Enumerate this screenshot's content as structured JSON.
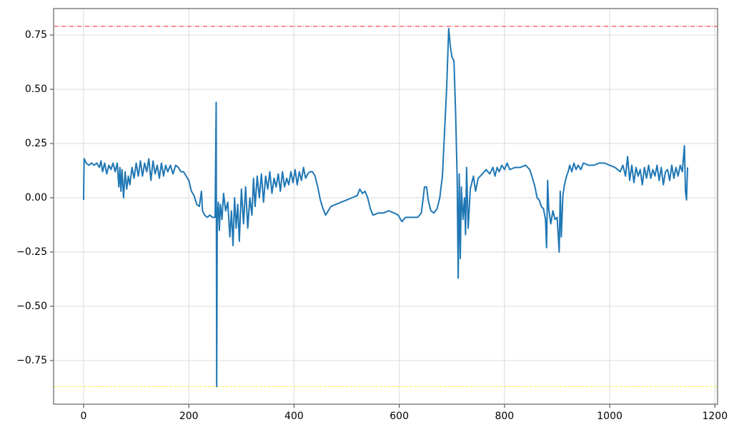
{
  "chart_data": {
    "type": "line",
    "color": "#1f77b4",
    "x": [
      0,
      1,
      5,
      10,
      15,
      20,
      25,
      30,
      33,
      36,
      40,
      44,
      48,
      52,
      56,
      60,
      64,
      67,
      69,
      71,
      73,
      76,
      79,
      82,
      85,
      88,
      92,
      96,
      100,
      104,
      108,
      112,
      116,
      120,
      124,
      128,
      132,
      136,
      140,
      144,
      148,
      152,
      156,
      160,
      165,
      170,
      175,
      180,
      185,
      190,
      195,
      200,
      205,
      210,
      215,
      220,
      224,
      226,
      230,
      235,
      240,
      245,
      250,
      252,
      253,
      254,
      256,
      258,
      260,
      263,
      266,
      270,
      274,
      278,
      281,
      284,
      287,
      290,
      293,
      296,
      300,
      304,
      308,
      312,
      316,
      320,
      323,
      326,
      330,
      334,
      338,
      342,
      346,
      350,
      354,
      358,
      362,
      366,
      370,
      374,
      378,
      382,
      386,
      390,
      394,
      398,
      402,
      406,
      410,
      414,
      418,
      422,
      426,
      430,
      435,
      440,
      445,
      450,
      455,
      460,
      465,
      470,
      480,
      490,
      500,
      510,
      520,
      525,
      530,
      535,
      540,
      545,
      550,
      560,
      570,
      580,
      590,
      598,
      605,
      612,
      620,
      635,
      642,
      648,
      652,
      655,
      660,
      666,
      672,
      677,
      682,
      686,
      690,
      694,
      697,
      700,
      704,
      707,
      710,
      712,
      714,
      716,
      718,
      721,
      724,
      726,
      728,
      731,
      735,
      738,
      741,
      745,
      750,
      758,
      765,
      772,
      778,
      782,
      786,
      790,
      795,
      800,
      805,
      810,
      820,
      830,
      840,
      848,
      852,
      858,
      862,
      866,
      870,
      874,
      878,
      880,
      882,
      884,
      888,
      892,
      896,
      900,
      904,
      906,
      908,
      911,
      914,
      918,
      921,
      924,
      928,
      932,
      936,
      940,
      945,
      950,
      960,
      970,
      980,
      990,
      1000,
      1010,
      1020,
      1025,
      1030,
      1034,
      1038,
      1042,
      1046,
      1050,
      1054,
      1058,
      1062,
      1066,
      1070,
      1074,
      1078,
      1082,
      1086,
      1090,
      1094,
      1098,
      1102,
      1106,
      1110,
      1114,
      1118,
      1122,
      1126,
      1130,
      1134,
      1138,
      1142,
      1144,
      1146,
      1148
    ],
    "values": [
      -0.01,
      0.18,
      0.16,
      0.15,
      0.16,
      0.15,
      0.16,
      0.14,
      0.17,
      0.12,
      0.16,
      0.11,
      0.15,
      0.13,
      0.16,
      0.12,
      0.16,
      0.05,
      0.14,
      0.03,
      0.13,
      0.0,
      0.12,
      0.04,
      0.1,
      0.06,
      0.14,
      0.09,
      0.16,
      0.1,
      0.17,
      0.1,
      0.16,
      0.12,
      0.18,
      0.08,
      0.17,
      0.11,
      0.15,
      0.09,
      0.16,
      0.1,
      0.15,
      0.12,
      0.15,
      0.11,
      0.15,
      0.14,
      0.12,
      0.12,
      0.1,
      0.08,
      0.03,
      0.01,
      -0.03,
      -0.04,
      0.03,
      -0.06,
      -0.08,
      -0.09,
      -0.08,
      -0.09,
      -0.09,
      0.44,
      -0.87,
      -0.1,
      -0.02,
      -0.15,
      -0.03,
      -0.1,
      0.02,
      -0.06,
      -0.02,
      -0.18,
      -0.06,
      -0.22,
      0.0,
      -0.14,
      -0.03,
      -0.2,
      0.04,
      -0.12,
      0.05,
      -0.14,
      0.0,
      -0.08,
      0.09,
      -0.04,
      0.1,
      0.0,
      0.11,
      -0.02,
      0.1,
      0.04,
      0.12,
      0.02,
      0.09,
      0.05,
      0.11,
      0.03,
      0.12,
      0.05,
      0.09,
      0.06,
      0.12,
      0.07,
      0.13,
      0.06,
      0.12,
      0.08,
      0.14,
      0.09,
      0.11,
      0.12,
      0.12,
      0.1,
      0.05,
      -0.01,
      -0.05,
      -0.08,
      -0.06,
      -0.04,
      -0.03,
      -0.02,
      -0.01,
      0.0,
      0.01,
      0.04,
      0.02,
      0.03,
      0.0,
      -0.05,
      -0.08,
      -0.07,
      -0.07,
      -0.06,
      -0.07,
      -0.08,
      -0.11,
      -0.09,
      -0.09,
      -0.09,
      -0.07,
      0.05,
      0.05,
      -0.01,
      -0.06,
      -0.07,
      -0.05,
      0.0,
      0.1,
      0.3,
      0.5,
      0.78,
      0.7,
      0.65,
      0.63,
      0.4,
      0.1,
      -0.37,
      0.11,
      -0.28,
      0.05,
      -0.1,
      0.0,
      -0.17,
      0.14,
      -0.14,
      0.04,
      0.07,
      0.1,
      0.03,
      0.09,
      0.11,
      0.13,
      0.11,
      0.14,
      0.1,
      0.14,
      0.12,
      0.15,
      0.13,
      0.16,
      0.13,
      0.14,
      0.14,
      0.15,
      0.13,
      0.1,
      0.05,
      0.0,
      -0.01,
      -0.04,
      -0.05,
      -0.1,
      -0.23,
      0.08,
      -0.05,
      -0.12,
      -0.06,
      -0.1,
      -0.09,
      -0.25,
      0.03,
      -0.18,
      0.01,
      0.06,
      0.1,
      0.12,
      0.15,
      0.12,
      0.16,
      0.13,
      0.15,
      0.13,
      0.16,
      0.15,
      0.15,
      0.16,
      0.16,
      0.15,
      0.14,
      0.12,
      0.15,
      0.1,
      0.19,
      0.08,
      0.15,
      0.07,
      0.14,
      0.1,
      0.13,
      0.06,
      0.14,
      0.09,
      0.15,
      0.09,
      0.13,
      0.1,
      0.15,
      0.08,
      0.14,
      0.06,
      0.12,
      0.13,
      0.08,
      0.15,
      0.09,
      0.14,
      0.1,
      0.15,
      0.12,
      0.24,
      0.03,
      -0.01,
      0.14
    ],
    "hlines": [
      {
        "value": 0.79,
        "color": "#ff0000"
      },
      {
        "value": -0.87,
        "color": "#ffee00"
      }
    ],
    "xlim": [
      -57,
      1205
    ],
    "ylim": [
      -0.951,
      0.872
    ],
    "xticks": [
      0,
      200,
      400,
      600,
      800,
      1000,
      1200
    ],
    "yticks": [
      {
        "value": -0.75,
        "label": "−0.75"
      },
      {
        "value": -0.5,
        "label": "−0.50"
      },
      {
        "value": -0.25,
        "label": "−0.25"
      },
      {
        "value": 0,
        "label": "0.00"
      },
      0.25,
      {
        "value": 0.5,
        "label": "0.50"
      },
      0.75
    ],
    "grid": true
  }
}
